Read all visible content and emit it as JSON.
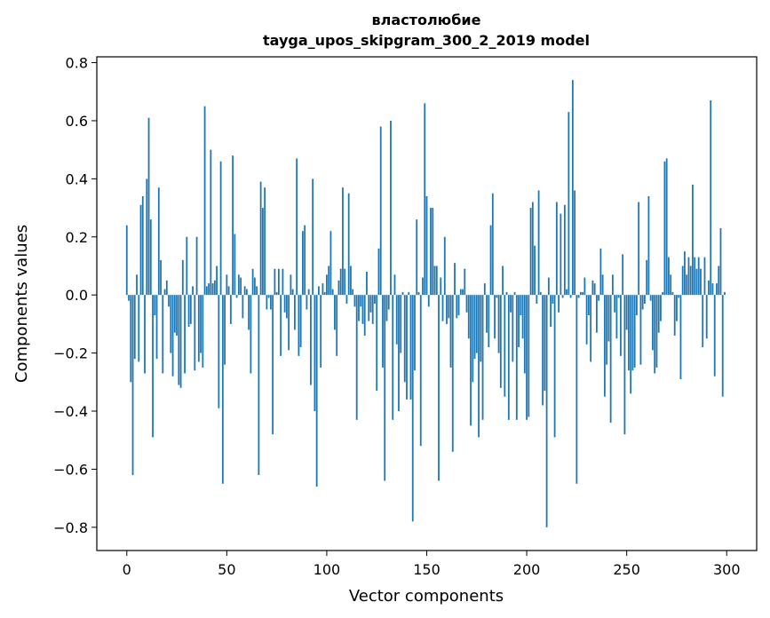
{
  "chart_data": {
    "type": "bar",
    "title": "властолюбие",
    "subtitle": "tayga_upos_skipgram_300_2_2019 model",
    "xlabel": "Vector components",
    "ylabel": "Components values",
    "xlim": [
      -15,
      315
    ],
    "ylim": [
      -0.88,
      0.82
    ],
    "xticks": [
      0,
      50,
      100,
      150,
      200,
      250,
      300
    ],
    "yticks": [
      -0.8,
      -0.6,
      -0.4,
      -0.2,
      0.0,
      0.2,
      0.4,
      0.6,
      0.8
    ],
    "ytick_labels": [
      "−0.8",
      "−0.6",
      "−0.4",
      "−0.2",
      "0.0",
      "0.2",
      "0.4",
      "0.6",
      "0.8"
    ],
    "bar_color": "#1f77b4",
    "grid": false,
    "values": [
      0.24,
      -0.02,
      -0.3,
      -0.62,
      -0.22,
      0.07,
      -0.23,
      0.31,
      0.34,
      -0.27,
      0.4,
      0.61,
      0.26,
      -0.49,
      -0.07,
      -0.22,
      0.37,
      0.12,
      -0.27,
      0.02,
      0.05,
      -0.04,
      -0.2,
      -0.28,
      -0.13,
      -0.14,
      -0.31,
      -0.32,
      0.12,
      -0.27,
      0.2,
      -0.11,
      -0.1,
      0.03,
      -0.26,
      0.2,
      -0.23,
      -0.2,
      -0.25,
      0.65,
      0.03,
      0.04,
      0.5,
      0.04,
      0.05,
      0.1,
      -0.39,
      0.46,
      -0.65,
      -0.24,
      0.07,
      0.03,
      -0.1,
      0.48,
      0.21,
      -0.01,
      0.07,
      0.06,
      -0.08,
      0.03,
      0.02,
      -0.12,
      -0.27,
      0.09,
      0.06,
      0.03,
      -0.62,
      0.39,
      0.3,
      0.37,
      -0.05,
      -0.01,
      -0.05,
      -0.48,
      0.09,
      0.01,
      0.09,
      -0.21,
      0.09,
      -0.06,
      -0.08,
      -0.19,
      0.07,
      0.02,
      -0.12,
      0.47,
      -0.21,
      -0.18,
      0.22,
      0.24,
      -0.05,
      0.02,
      -0.31,
      0.4,
      -0.4,
      -0.66,
      0.03,
      -0.25,
      0.04,
      0.01,
      0.07,
      0.1,
      0.22,
      0.02,
      -0.12,
      -0.21,
      0.05,
      0.09,
      0.37,
      0.09,
      -0.03,
      0.35,
      0.1,
      0.02,
      -0.04,
      -0.43,
      -0.09,
      -0.04,
      -0.1,
      -0.14,
      0.08,
      -0.09,
      -0.06,
      -0.1,
      -0.03,
      -0.33,
      0.16,
      0.58,
      -0.25,
      -0.64,
      -0.09,
      -0.05,
      0.6,
      -0.43,
      0.07,
      -0.17,
      -0.4,
      -0.2,
      0.01,
      -0.3,
      -0.36,
      0.01,
      -0.36,
      -0.78,
      -0.26,
      0.26,
      0.01,
      -0.52,
      0.06,
      0.66,
      0.34,
      -0.04,
      0.3,
      0.3,
      0.1,
      0.1,
      -0.64,
      0.06,
      -0.09,
      0.2,
      -0.1,
      -0.08,
      -0.25,
      -0.54,
      0.11,
      -0.08,
      -0.07,
      0.02,
      0.02,
      0.09,
      -0.06,
      -0.15,
      -0.45,
      -0.3,
      -0.22,
      -0.2,
      -0.49,
      -0.23,
      -0.43,
      0.04,
      -0.13,
      -0.18,
      0.24,
      0.35,
      -0.15,
      -0.01,
      -0.2,
      -0.32,
      0.1,
      -0.35,
      0.01,
      -0.43,
      -0.06,
      -0.23,
      0.01,
      -0.43,
      -0.18,
      -0.07,
      -0.15,
      -0.27,
      -0.43,
      -0.42,
      0.3,
      0.32,
      0.17,
      -0.03,
      0.36,
      0.01,
      -0.38,
      -0.33,
      -0.8,
      0.06,
      -0.11,
      -0.03,
      -0.49,
      0.32,
      -0.06,
      0.28,
      -0.01,
      0.31,
      0.02,
      0.63,
      -0.01,
      0.74,
      0.36,
      -0.65,
      -0.01,
      0.01,
      0.01,
      0.06,
      -0.17,
      -0.07,
      -0.23,
      0.05,
      0.04,
      -0.13,
      -0.02,
      0.16,
      0.07,
      -0.35,
      -0.24,
      -0.16,
      -0.44,
      0.07,
      -0.06,
      -0.15,
      -0.01,
      -0.21,
      0.14,
      -0.48,
      -0.12,
      -0.26,
      -0.34,
      -0.26,
      -0.25,
      -0.07,
      0.32,
      -0.24,
      -0.05,
      -0.03,
      0.12,
      0.34,
      -0.02,
      -0.19,
      -0.27,
      -0.25,
      -0.13,
      -0.09,
      0.01,
      0.46,
      0.47,
      0.13,
      0.07,
      0.01,
      -0.14,
      -0.09,
      -0.01,
      -0.29,
      0.1,
      0.15,
      0.07,
      0.13,
      0.1,
      0.38,
      0.13,
      0.09,
      0.13,
      0.09,
      -0.18,
      0.13,
      -0.15,
      0.05,
      0.67,
      0.04,
      -0.28,
      0.04,
      0.1,
      0.23,
      -0.35,
      0.01
    ]
  }
}
